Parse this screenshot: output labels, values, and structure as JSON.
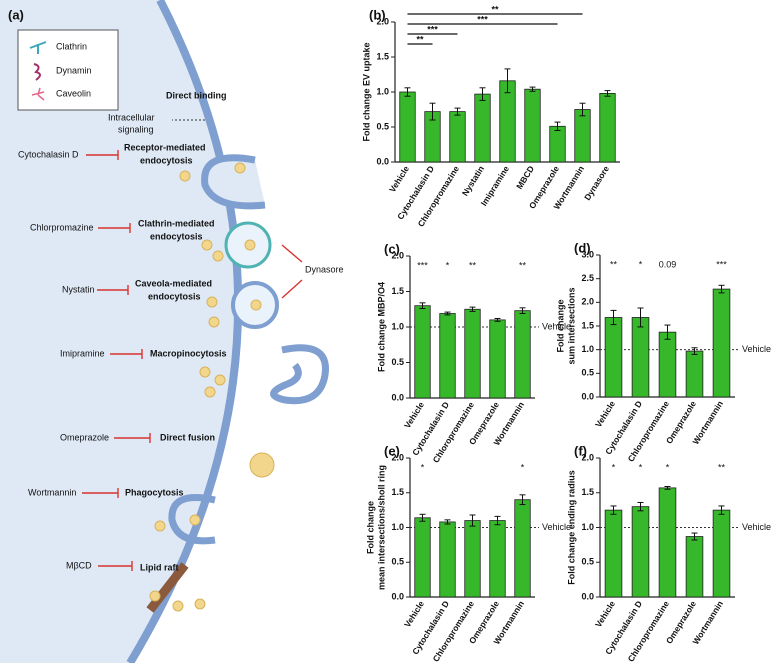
{
  "panel_a": {
    "panel": "(a)",
    "legend": [
      "Clathrin",
      "Dynamin",
      "Caveolin"
    ],
    "direct_binding": "Direct binding",
    "intracellular": [
      "Intracellular",
      "signaling"
    ],
    "receptor": [
      "Receptor-mediated",
      "endocytosis"
    ],
    "clathrin": [
      "Clathrin-mediated",
      "endocytosis"
    ],
    "caveola": [
      "Caveola-mediated",
      "endocytosis"
    ],
    "macropinocytosis": "Macropinocytosis",
    "direct_fusion": "Direct fusion",
    "phagocytosis": "Phagocytosis",
    "lipid_raft": "Lipid raft",
    "inhibitors": [
      "Cytochalasin D",
      "Chlorpromazine",
      "Nystatin",
      "Imipramine",
      "Omeprazole",
      "Wortmannin",
      "MβCD",
      "Dynasore"
    ]
  },
  "chart_data": [
    {
      "type": "bar",
      "panel": "(b)",
      "ylabel": [
        "Fold change EV uptake"
      ],
      "categories": [
        "Vehicle",
        "Cytochalasin D",
        "Chloropromazine",
        "Nystatin",
        "Imipramine",
        "MBCD",
        "Omeprazole",
        "Wortmannin",
        "Dynasore"
      ],
      "values": [
        1.0,
        0.72,
        0.72,
        0.97,
        1.16,
        1.04,
        0.51,
        0.75,
        0.98
      ],
      "errors": [
        0.06,
        0.12,
        0.05,
        0.09,
        0.17,
        0.03,
        0.06,
        0.09,
        0.04
      ],
      "color": "#36b82a",
      "ylim": [
        0,
        2
      ],
      "yticks": [
        {
          "value": 0,
          "label": "0.0"
        },
        0.5,
        {
          "value": 1,
          "label": "1.0"
        },
        1.5,
        {
          "value": 2,
          "label": "2.0"
        }
      ],
      "comparisons": [
        {
          "from": "Vehicle",
          "to": "Wortmannin",
          "label": "**"
        },
        {
          "from": "Vehicle",
          "to": "Omeprazole",
          "label": "***"
        },
        {
          "from": "Vehicle",
          "to": "Chloropromazine",
          "label": "***"
        },
        {
          "from": "Vehicle",
          "to": "Cytochalasin D",
          "label": "**"
        }
      ]
    },
    {
      "type": "bar",
      "panel": "(c)",
      "ylabel": [
        "Fold change MBP/O4"
      ],
      "categories": [
        "Vehicle",
        "Cytochalasin D",
        "Chloropromazine",
        "Omeprazole",
        "Wortmannin"
      ],
      "values": [
        1.3,
        1.19,
        1.25,
        1.1,
        1.23
      ],
      "errors": [
        0.04,
        0.02,
        0.03,
        0.02,
        0.04
      ],
      "significance": [
        "***",
        "*",
        "**",
        null,
        "**"
      ],
      "color": "#36b82a",
      "ylim": [
        0,
        2
      ],
      "yticks": [
        {
          "value": 0,
          "label": "0.0"
        },
        0.5,
        {
          "value": 1,
          "label": "1.0"
        },
        1.5,
        {
          "value": 2,
          "label": "2.0"
        }
      ],
      "reference_line": {
        "value": 1,
        "label": "Vehicle"
      }
    },
    {
      "type": "bar",
      "panel": "(d)",
      "ylabel": [
        "Fold change",
        "sum intersections"
      ],
      "categories": [
        "Vehicle",
        "Cytochalasin D",
        "Chloropromazine",
        "Omeprazole",
        "Wortmannin"
      ],
      "values": [
        1.68,
        1.68,
        1.37,
        0.97,
        2.28
      ],
      "errors": [
        0.15,
        0.2,
        0.15,
        0.07,
        0.08
      ],
      "significance": [
        "**",
        "*",
        "0.09",
        null,
        "***"
      ],
      "color": "#36b82a",
      "ylim": [
        0,
        3
      ],
      "yticks": [
        {
          "value": 0,
          "label": "0.0"
        },
        0.5,
        {
          "value": 1,
          "label": "1.0"
        },
        1.5,
        {
          "value": 2,
          "label": "2.0"
        },
        2.5,
        {
          "value": 3,
          "label": "3.0"
        }
      ],
      "reference_line": {
        "value": 1,
        "label": "Vehicle"
      }
    },
    {
      "type": "bar",
      "panel": "(e)",
      "ylabel": [
        "Fold change",
        "mean intersections/sholl ring"
      ],
      "categories": [
        "Vehicle",
        "Cytochalasin D",
        "Chloropromazine",
        "Omeprazole",
        "Wortmannin"
      ],
      "values": [
        1.14,
        1.08,
        1.1,
        1.1,
        1.4
      ],
      "errors": [
        0.05,
        0.03,
        0.08,
        0.06,
        0.07
      ],
      "significance": [
        "*",
        null,
        null,
        null,
        "*"
      ],
      "color": "#36b82a",
      "ylim": [
        0,
        2
      ],
      "yticks": [
        {
          "value": 0,
          "label": "0.0"
        },
        0.5,
        {
          "value": 1,
          "label": "1.0"
        },
        1.5,
        {
          "value": 2,
          "label": "2.0"
        }
      ],
      "reference_line": {
        "value": 1,
        "label": "Vehicle"
      }
    },
    {
      "type": "bar",
      "panel": "(f)",
      "ylabel": [
        "Fold change ending radius"
      ],
      "categories": [
        "Vehicle",
        "Cytochalasin D",
        "Chloropromazine",
        "Omeprazole",
        "Wortmannin"
      ],
      "values": [
        1.25,
        1.3,
        1.57,
        0.87,
        1.25
      ],
      "errors": [
        0.06,
        0.06,
        0.02,
        0.05,
        0.06
      ],
      "significance": [
        "*",
        "*",
        "*",
        null,
        "**"
      ],
      "color": "#36b82a",
      "ylim": [
        0,
        2
      ],
      "yticks": [
        {
          "value": 0,
          "label": "0.0"
        },
        0.5,
        {
          "value": 1,
          "label": "1.0"
        },
        1.5,
        {
          "value": 2,
          "label": "2.0"
        }
      ],
      "reference_line": {
        "value": 1,
        "label": "Vehicle"
      }
    }
  ]
}
